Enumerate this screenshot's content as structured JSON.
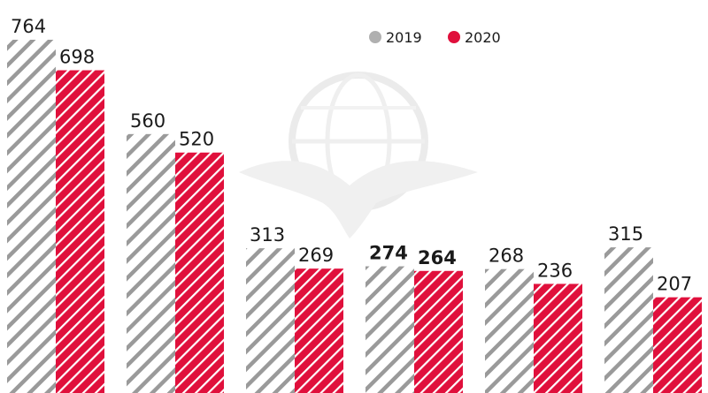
{
  "chart_data": {
    "type": "bar",
    "categories": [
      "",
      "",
      "",
      "",
      "",
      ""
    ],
    "series": [
      {
        "name": "2019",
        "values": [
          764,
          560,
          313,
          274,
          268,
          315
        ],
        "color": "#a0a0a0",
        "pattern": "hatched"
      },
      {
        "name": "2020",
        "values": [
          698,
          520,
          269,
          264,
          236,
          207
        ],
        "color": "#e0103c",
        "pattern": "hatched"
      }
    ],
    "highlighted_category_index": 3,
    "ylim": [
      0,
      764
    ],
    "legend": "top-right",
    "grid": false,
    "watermark_icon": "eagle-globe-logo"
  }
}
